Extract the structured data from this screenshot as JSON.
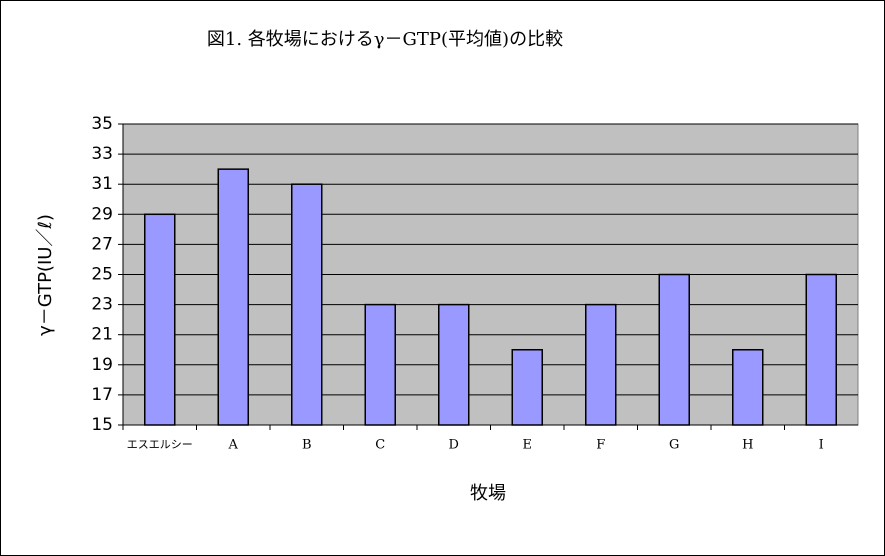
{
  "chart_data": {
    "type": "bar",
    "title": "図1. 各牧場におけるγ－GTP(平均値)の比較",
    "x_label": "牧場",
    "y_label": "γ－GTP(IU／ℓ)",
    "categories": [
      "エスエルシー",
      "A",
      "B",
      "C",
      "D",
      "E",
      "F",
      "G",
      "H",
      "I"
    ],
    "values": [
      29,
      32,
      31,
      23,
      23,
      20,
      23,
      25,
      20,
      25
    ],
    "color": "#9999ff",
    "ylim": [
      15,
      35
    ],
    "yticks": [
      15,
      17,
      19,
      21,
      23,
      25,
      27,
      29,
      31,
      33,
      35
    ],
    "grid": true
  }
}
